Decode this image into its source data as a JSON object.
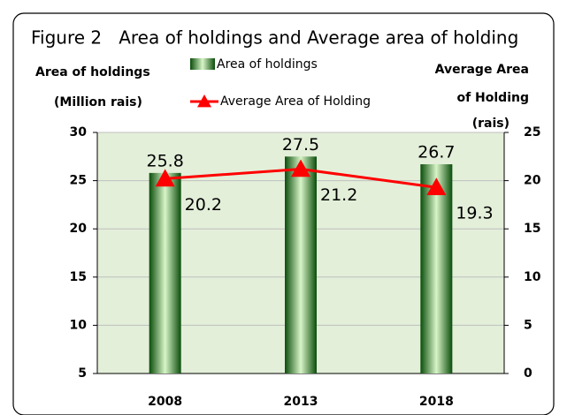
{
  "chart_data": {
    "type": "bar_line",
    "title": "Figure 2   Area of holdings and Average area of holding",
    "ylabel": [
      "Area of holdings",
      "(Million rais)"
    ],
    "y2label": [
      "Average Area",
      "of Holding",
      "(rais)"
    ],
    "categories": [
      "2008",
      "2013",
      "2018"
    ],
    "series": [
      {
        "name": "Area of holdings",
        "type": "bar",
        "color": "#1f9a1f",
        "values": [
          25.8,
          27.5,
          26.7
        ]
      },
      {
        "name": "Average Area of Holding",
        "type": "line",
        "axis": "y2",
        "color": "#ff0000",
        "values": [
          20.2,
          21.2,
          19.3
        ]
      }
    ],
    "ylim": [
      5,
      30
    ],
    "yticks": [
      5,
      10,
      15,
      20,
      25,
      30
    ],
    "y2lim": [
      0,
      25
    ],
    "y2ticks": [
      0,
      5,
      10,
      15,
      20,
      25
    ],
    "grid": true
  }
}
